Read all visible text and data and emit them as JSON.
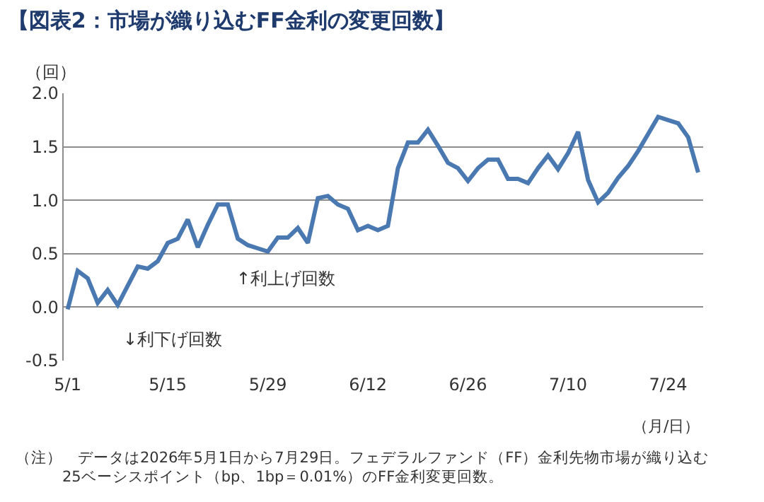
{
  "chart_data": {
    "type": "line",
    "title": "【図表2：市場が織り込むFF金利の変更回数】",
    "ylabel": "（回）",
    "xlabel": "（月/日）",
    "categories": [
      "5/1",
      null,
      null,
      null,
      null,
      null,
      null,
      null,
      null,
      null,
      "5/15",
      null,
      null,
      null,
      null,
      null,
      null,
      null,
      null,
      null,
      "5/29",
      null,
      null,
      null,
      null,
      null,
      null,
      null,
      null,
      null,
      "6/12",
      null,
      null,
      null,
      null,
      null,
      null,
      null,
      null,
      null,
      "6/26",
      null,
      null,
      null,
      null,
      null,
      null,
      null,
      null,
      null,
      "7/10",
      null,
      null,
      null,
      null,
      null,
      null,
      null,
      null,
      null,
      "7/24",
      null,
      null,
      null
    ],
    "series": [
      {
        "color": "#4a78b0",
        "values": [
          -0.02,
          0.34,
          0.27,
          0.04,
          0.16,
          0.02,
          0.2,
          0.38,
          0.36,
          0.43,
          0.6,
          0.64,
          0.82,
          0.56,
          0.77,
          0.96,
          0.96,
          0.64,
          0.58,
          0.55,
          0.52,
          0.65,
          0.65,
          0.74,
          0.6,
          1.02,
          1.04,
          0.96,
          0.92,
          0.72,
          0.76,
          0.72,
          0.76,
          1.3,
          1.54,
          1.54,
          1.66,
          1.51,
          1.35,
          1.3,
          1.18,
          1.3,
          1.38,
          1.38,
          1.2,
          1.2,
          1.16,
          1.3,
          1.42,
          1.29,
          1.44,
          1.64,
          1.19,
          0.98,
          1.07,
          1.21,
          1.32,
          1.46,
          1.62,
          1.78,
          1.75,
          1.72,
          1.59,
          1.26
        ]
      }
    ],
    "ylim": [
      -0.5,
      2.0
    ],
    "yticks": [
      {
        "value": -0.5,
        "label": "-0.5"
      },
      {
        "value": 0,
        "label": "0.0"
      },
      {
        "value": 0.5,
        "label": "0.5"
      },
      {
        "value": 1,
        "label": "1.0"
      },
      {
        "value": 1.5,
        "label": "1.5"
      },
      {
        "value": 2,
        "label": "2.0"
      }
    ],
    "grid": "y",
    "marker": "none",
    "line_style": "solid",
    "annotations": [
      "↑利上げ回数",
      "↓利下げ回数",
      "（注）　データは2026年5月1日から7月29日。フェデラルファンド（FF）金利先物市場が織り込む\n25ベーシスポイント（bp、1bp＝0.01%）のFF金利変更回数。"
    ]
  }
}
